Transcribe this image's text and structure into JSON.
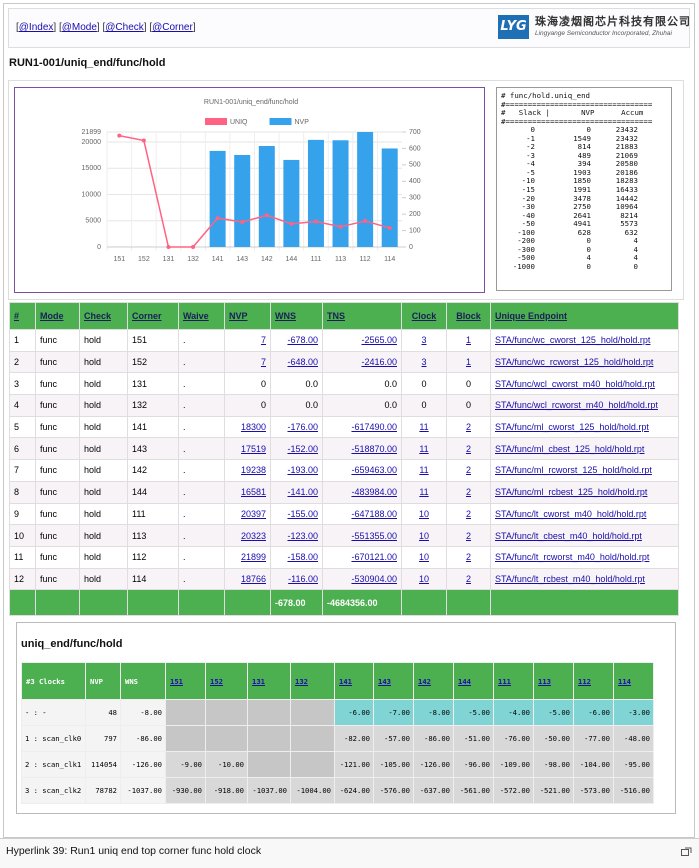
{
  "nav": [
    {
      "before": "[",
      "link": "@Index",
      "after": "]"
    },
    {
      "before": "[",
      "link": "@Mode",
      "after": "]"
    },
    {
      "before": "[",
      "link": "@Check",
      "after": "]"
    },
    {
      "before": "[",
      "link": "@Corner",
      "after": "]"
    }
  ],
  "logo": {
    "mark": "LYG",
    "name": "珠海凌烟阁芯片科技有限公司",
    "subtitle": "Lingyange Semiconductor Incorporated, Zhuhai"
  },
  "page_title": "RUN1-001/uniq_end/func/hold",
  "chart_data": {
    "type": "bar",
    "title": "RUN1-001/uniq_end/func/hold",
    "categories": [
      "151",
      "152",
      "131",
      "132",
      "141",
      "143",
      "142",
      "144",
      "111",
      "113",
      "112",
      "114"
    ],
    "series": [
      {
        "name": "UNIQ",
        "type": "line",
        "axis": "y2",
        "color": "#ff6384",
        "values": [
          678,
          648,
          0,
          0,
          176,
          152,
          193,
          141,
          155,
          123,
          158,
          116
        ]
      },
      {
        "name": "NVP",
        "type": "bar",
        "color": "#36a2eb",
        "values": [
          7,
          7,
          0,
          0,
          18300,
          17519,
          19238,
          16581,
          20397,
          20323,
          21899,
          18766
        ]
      }
    ],
    "ylim": [
      0,
      21899
    ],
    "yticks": [
      0,
      5000,
      10000,
      15000,
      20000,
      21899
    ],
    "y2lim": [
      0,
      700
    ],
    "y2ticks": [
      0,
      100,
      200,
      300,
      400,
      500,
      600,
      700
    ],
    "grid": true,
    "legend": "top"
  },
  "report": {
    "lines": [
      "# func/hold.uniq_end",
      "#=================================",
      "#   Slack |       NVP      Accum",
      "#================================="
    ],
    "rows": [
      [
        0,
        0,
        23432
      ],
      [
        -1,
        1549,
        23432
      ],
      [
        -2,
        814,
        21883
      ],
      [
        -3,
        489,
        21069
      ],
      [
        -4,
        394,
        20580
      ],
      [
        -5,
        1903,
        20186
      ],
      [
        -10,
        1850,
        18283
      ],
      [
        -15,
        1991,
        16433
      ],
      [
        -20,
        3478,
        14442
      ],
      [
        -30,
        2750,
        10964
      ],
      [
        -40,
        2641,
        8214
      ],
      [
        -50,
        4941,
        5573
      ],
      [
        -100,
        628,
        632
      ],
      [
        -200,
        0,
        4
      ],
      [
        -300,
        0,
        4
      ],
      [
        -500,
        4,
        4
      ],
      [
        -1000,
        0,
        0
      ]
    ]
  },
  "table": {
    "headers": [
      "#",
      "Mode",
      "Check",
      "Corner",
      "Waive",
      "NVP",
      "WNS",
      "TNS",
      "Clock",
      "Block",
      "Unique Endpoint"
    ],
    "rows": [
      [
        "1",
        "func",
        "hold",
        "151",
        ".",
        "7",
        "-678.00",
        "-2565.00",
        "3",
        "1",
        "STA/func/wc_cworst_125_hold/hold.rpt"
      ],
      [
        "2",
        "func",
        "hold",
        "152",
        ".",
        "7",
        "-648.00",
        "-2416.00",
        "3",
        "1",
        "STA/func/wc_rcworst_125_hold/hold.rpt"
      ],
      [
        "3",
        "func",
        "hold",
        "131",
        ".",
        "0",
        "0.0",
        "0.0",
        "0",
        "0",
        "STA/func/wcl_cworst_m40_hold/hold.rpt"
      ],
      [
        "4",
        "func",
        "hold",
        "132",
        ".",
        "0",
        "0.0",
        "0.0",
        "0",
        "0",
        "STA/func/wcl_rcworst_m40_hold/hold.rpt"
      ],
      [
        "5",
        "func",
        "hold",
        "141",
        ".",
        "18300",
        "-176.00",
        "-617490.00",
        "11",
        "2",
        "STA/func/ml_cworst_125_hold/hold.rpt"
      ],
      [
        "6",
        "func",
        "hold",
        "143",
        ".",
        "17519",
        "-152.00",
        "-518870.00",
        "11",
        "2",
        "STA/func/ml_cbest_125_hold/hold.rpt"
      ],
      [
        "7",
        "func",
        "hold",
        "142",
        ".",
        "19238",
        "-193.00",
        "-659463.00",
        "11",
        "2",
        "STA/func/ml_rcworst_125_hold/hold.rpt"
      ],
      [
        "8",
        "func",
        "hold",
        "144",
        ".",
        "16581",
        "-141.00",
        "-483984.00",
        "11",
        "2",
        "STA/func/ml_rcbest_125_hold/hold.rpt"
      ],
      [
        "9",
        "func",
        "hold",
        "111",
        ".",
        "20397",
        "-155.00",
        "-647188.00",
        "10",
        "2",
        "STA/func/lt_cworst_m40_hold/hold.rpt"
      ],
      [
        "10",
        "func",
        "hold",
        "113",
        ".",
        "20323",
        "-123.00",
        "-551355.00",
        "10",
        "2",
        "STA/func/lt_cbest_m40_hold/hold.rpt"
      ],
      [
        "11",
        "func",
        "hold",
        "112",
        ".",
        "21899",
        "-158.00",
        "-670121.00",
        "10",
        "2",
        "STA/func/lt_rcworst_m40_hold/hold.rpt"
      ],
      [
        "12",
        "func",
        "hold",
        "114",
        ".",
        "18766",
        "-116.00",
        "-530904.00",
        "10",
        "2",
        "STA/func/lt_rcbest_m40_hold/hold.rpt"
      ]
    ],
    "footer": [
      null,
      null,
      null,
      null,
      null,
      null,
      "-678.00",
      "-4684356.00",
      null,
      null,
      null
    ]
  },
  "clock_table": {
    "title": "uniq_end/func/hold",
    "headers": [
      "#3 Clocks",
      "NVP",
      "WNS",
      "151",
      "152",
      "131",
      "132",
      "141",
      "143",
      "142",
      "144",
      "111",
      "113",
      "112",
      "114"
    ],
    "rows": [
      [
        "- : -",
        "48",
        "-8.00",
        null,
        null,
        null,
        null,
        "-6.00",
        "-7.00",
        "-8.00",
        "-5.00",
        "-4.00",
        "-5.00",
        "-6.00",
        "-3.00"
      ],
      [
        "1 : scan_clk0",
        "797",
        "-86.00",
        null,
        null,
        null,
        null,
        "-82.00",
        "-57.00",
        "-86.00",
        "-51.00",
        "-76.00",
        "-50.00",
        "-77.00",
        "-48.00"
      ],
      [
        "2 : scan_clk1",
        "114054",
        "-126.00",
        "-9.00",
        "-10.00",
        null,
        null,
        "-121.00",
        "-105.00",
        "-126.00",
        "-96.00",
        "-109.00",
        "-98.00",
        "-104.00",
        "-95.00"
      ],
      [
        "3 : scan_clk2",
        "78782",
        "-1037.00",
        "-930.00",
        "-918.00",
        "-1037.00",
        "-1004.00",
        "-624.00",
        "-576.00",
        "-637.00",
        "-561.00",
        "-572.00",
        "-521.00",
        "-573.00",
        "-516.00"
      ]
    ]
  },
  "caption": "Hyperlink 39: Run1 uniq end top corner func hold clock"
}
